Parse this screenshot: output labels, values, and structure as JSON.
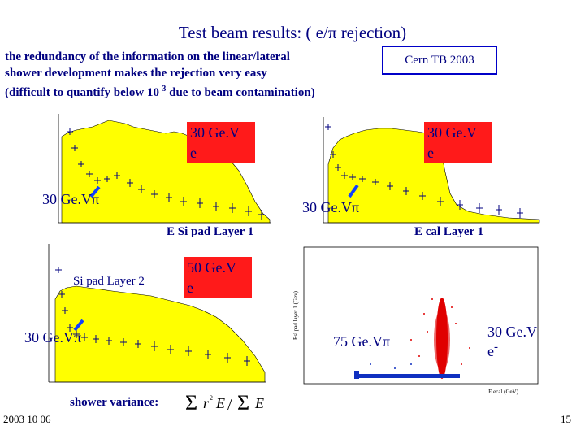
{
  "title": "Test beam results: ( e/π rejection)",
  "intro": {
    "line1": "the redundancy of the information  on the linear/lateral",
    "line2": "shower development makes the rejection very easy",
    "line3_prefix": "(difficult to quantify below 10",
    "line3_sup": "-3",
    "line3_suffix": " due to beam contamination)"
  },
  "badge": "Cern TB 2003",
  "panels": {
    "top_left": {
      "electron_label": "30 Ge.V",
      "electron_sub": "-",
      "electron_prefix": "e",
      "pion_label": "30 Ge.Vπ",
      "caption": "E Si pad Layer 1"
    },
    "top_right": {
      "electron_label": "30 Ge.V",
      "electron_prefix": "e",
      "electron_sub": "-",
      "pion_label": "30 Ge.Vπ",
      "caption": "E cal Layer 1"
    },
    "bottom_left": {
      "inner_label": "Si pad Layer 2",
      "electron_label": "50 Ge.V",
      "electron_prefix": "e",
      "electron_sub": "-",
      "pion_label": "30 Ge.Vπ"
    },
    "bottom_right": {
      "pion_label": "75 Ge.Vπ",
      "electron_label": "30 Ge.V",
      "electron_prefix": "e",
      "electron_sub": "-",
      "y_axis": "Esi pad layer 1 (Gev)",
      "x_axis": "E ecal (GeV)"
    }
  },
  "shower_label": "shower variance:",
  "footer": {
    "date": "2003 10 06",
    "page": "15"
  },
  "colors": {
    "title_blue": "#000080",
    "histo_yellow": "#ffff00",
    "label_red": "#ff1a1a",
    "badge_border": "#0000c8",
    "scatter_red": "#e00000",
    "scatter_blue": "#1030c0"
  }
}
